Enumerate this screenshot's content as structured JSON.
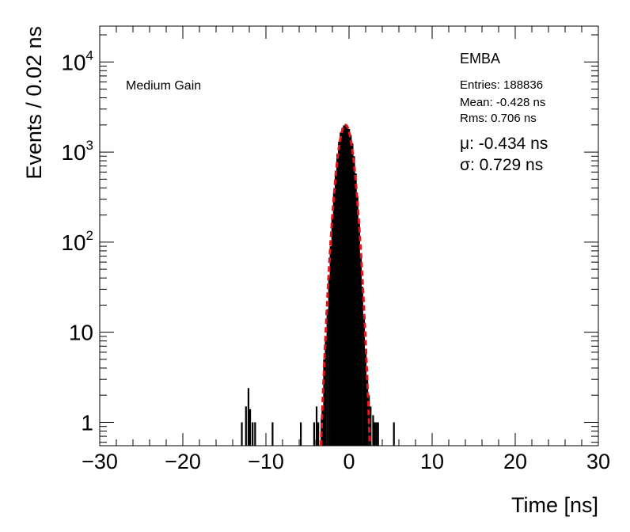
{
  "chart_data": {
    "type": "histogram",
    "xlabel": "Time [ns]",
    "ylabel": "Events / 0.02 ns",
    "xlim": [
      -30,
      30
    ],
    "ylim": [
      0.55,
      25000
    ],
    "y_scale": "log",
    "x_ticks": [
      {
        "value": -30,
        "label": "−30"
      },
      {
        "value": -20,
        "label": "−20"
      },
      {
        "value": -10,
        "label": "−10"
      },
      {
        "value": 0,
        "label": "0"
      },
      {
        "value": 10,
        "label": "10"
      },
      {
        "value": 20,
        "label": "20"
      },
      {
        "value": 30,
        "label": "30"
      }
    ],
    "y_ticks": [
      {
        "value": 1,
        "base": "1",
        "exp": ""
      },
      {
        "value": 10,
        "base": "10",
        "exp": ""
      },
      {
        "value": 100,
        "base": "10",
        "exp": "2"
      },
      {
        "value": 1000,
        "base": "10",
        "exp": "3"
      },
      {
        "value": 10000,
        "base": "10",
        "exp": "4"
      }
    ],
    "annotations": {
      "gain": "Medium Gain",
      "partition": "EMBA",
      "entries": "Entries: 188836",
      "mean": "Mean: -0.428 ns",
      "rms": "Rms: 0.706 ns",
      "mu": "μ: -0.434 ns",
      "sigma": "σ: 0.729 ns"
    },
    "fit": {
      "function": "gaussian",
      "mu": -0.434,
      "sigma": 0.729,
      "amplitude": 2000,
      "range": [
        -3.4,
        2.5
      ],
      "color": "#e8141a"
    },
    "histogram_color": "#000000",
    "histogram": [
      {
        "x": -12.9,
        "y": 1
      },
      {
        "x": -12.4,
        "y": 1.5
      },
      {
        "x": -12.1,
        "y": 2.4
      },
      {
        "x": -11.9,
        "y": 1.4
      },
      {
        "x": -11.6,
        "y": 1
      },
      {
        "x": -11.3,
        "y": 1
      },
      {
        "x": -9.2,
        "y": 1
      },
      {
        "x": -5.8,
        "y": 1
      },
      {
        "x": -4.2,
        "y": 1
      },
      {
        "x": -3.9,
        "y": 1.5
      },
      {
        "x": -3.7,
        "y": 1
      },
      {
        "x": -3.3,
        "y": 1.1
      },
      {
        "x": -3.2,
        "y": 1.5
      },
      {
        "x": -3.0,
        "y": 5
      },
      {
        "x": -2.9,
        "y": 3
      },
      {
        "x": -2.8,
        "y": 8
      },
      {
        "x": -2.6,
        "y": 18
      },
      {
        "x": -2.4,
        "y": 40
      },
      {
        "x": -2.2,
        "y": 90
      },
      {
        "x": -2.0,
        "y": 180
      },
      {
        "x": -1.8,
        "y": 350
      },
      {
        "x": -1.6,
        "y": 620
      },
      {
        "x": -1.4,
        "y": 950
      },
      {
        "x": -1.2,
        "y": 1300
      },
      {
        "x": -1.0,
        "y": 1650
      },
      {
        "x": -0.8,
        "y": 1850
      },
      {
        "x": -0.6,
        "y": 1980
      },
      {
        "x": -0.4,
        "y": 2000
      },
      {
        "x": -0.2,
        "y": 1950
      },
      {
        "x": 0.0,
        "y": 1800
      },
      {
        "x": 0.2,
        "y": 1550
      },
      {
        "x": 0.4,
        "y": 1250
      },
      {
        "x": 0.6,
        "y": 900
      },
      {
        "x": 0.8,
        "y": 580
      },
      {
        "x": 1.0,
        "y": 320
      },
      {
        "x": 1.2,
        "y": 160
      },
      {
        "x": 1.4,
        "y": 75
      },
      {
        "x": 1.6,
        "y": 32
      },
      {
        "x": 1.8,
        "y": 14
      },
      {
        "x": 2.0,
        "y": 6
      },
      {
        "x": 2.2,
        "y": 3
      },
      {
        "x": 2.4,
        "y": 2
      },
      {
        "x": 2.6,
        "y": 1.5
      },
      {
        "x": 2.9,
        "y": 1.2
      },
      {
        "x": 3.1,
        "y": 1
      },
      {
        "x": 3.3,
        "y": 1
      },
      {
        "x": 3.5,
        "y": 1
      },
      {
        "x": 5.4,
        "y": 1
      }
    ]
  }
}
